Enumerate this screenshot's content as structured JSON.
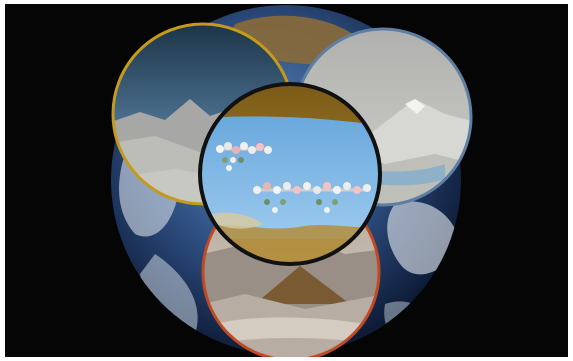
{
  "scene": {
    "background_color": "#050505",
    "frame_color": "#ffffff",
    "subjects": [
      "earth-globe",
      "sky-mountain-circle-left",
      "snow-mountain-circle-right",
      "desert-mountain-circle-bottom",
      "lake-molecule-circle-center"
    ],
    "ring_colors": {
      "left": "#c59a1c",
      "right": "#5e7fa3",
      "bottom": "#c04a24",
      "center": "#111111"
    },
    "molecules": [
      "molecule-chain-top",
      "molecule-chain-bottom"
    ]
  }
}
